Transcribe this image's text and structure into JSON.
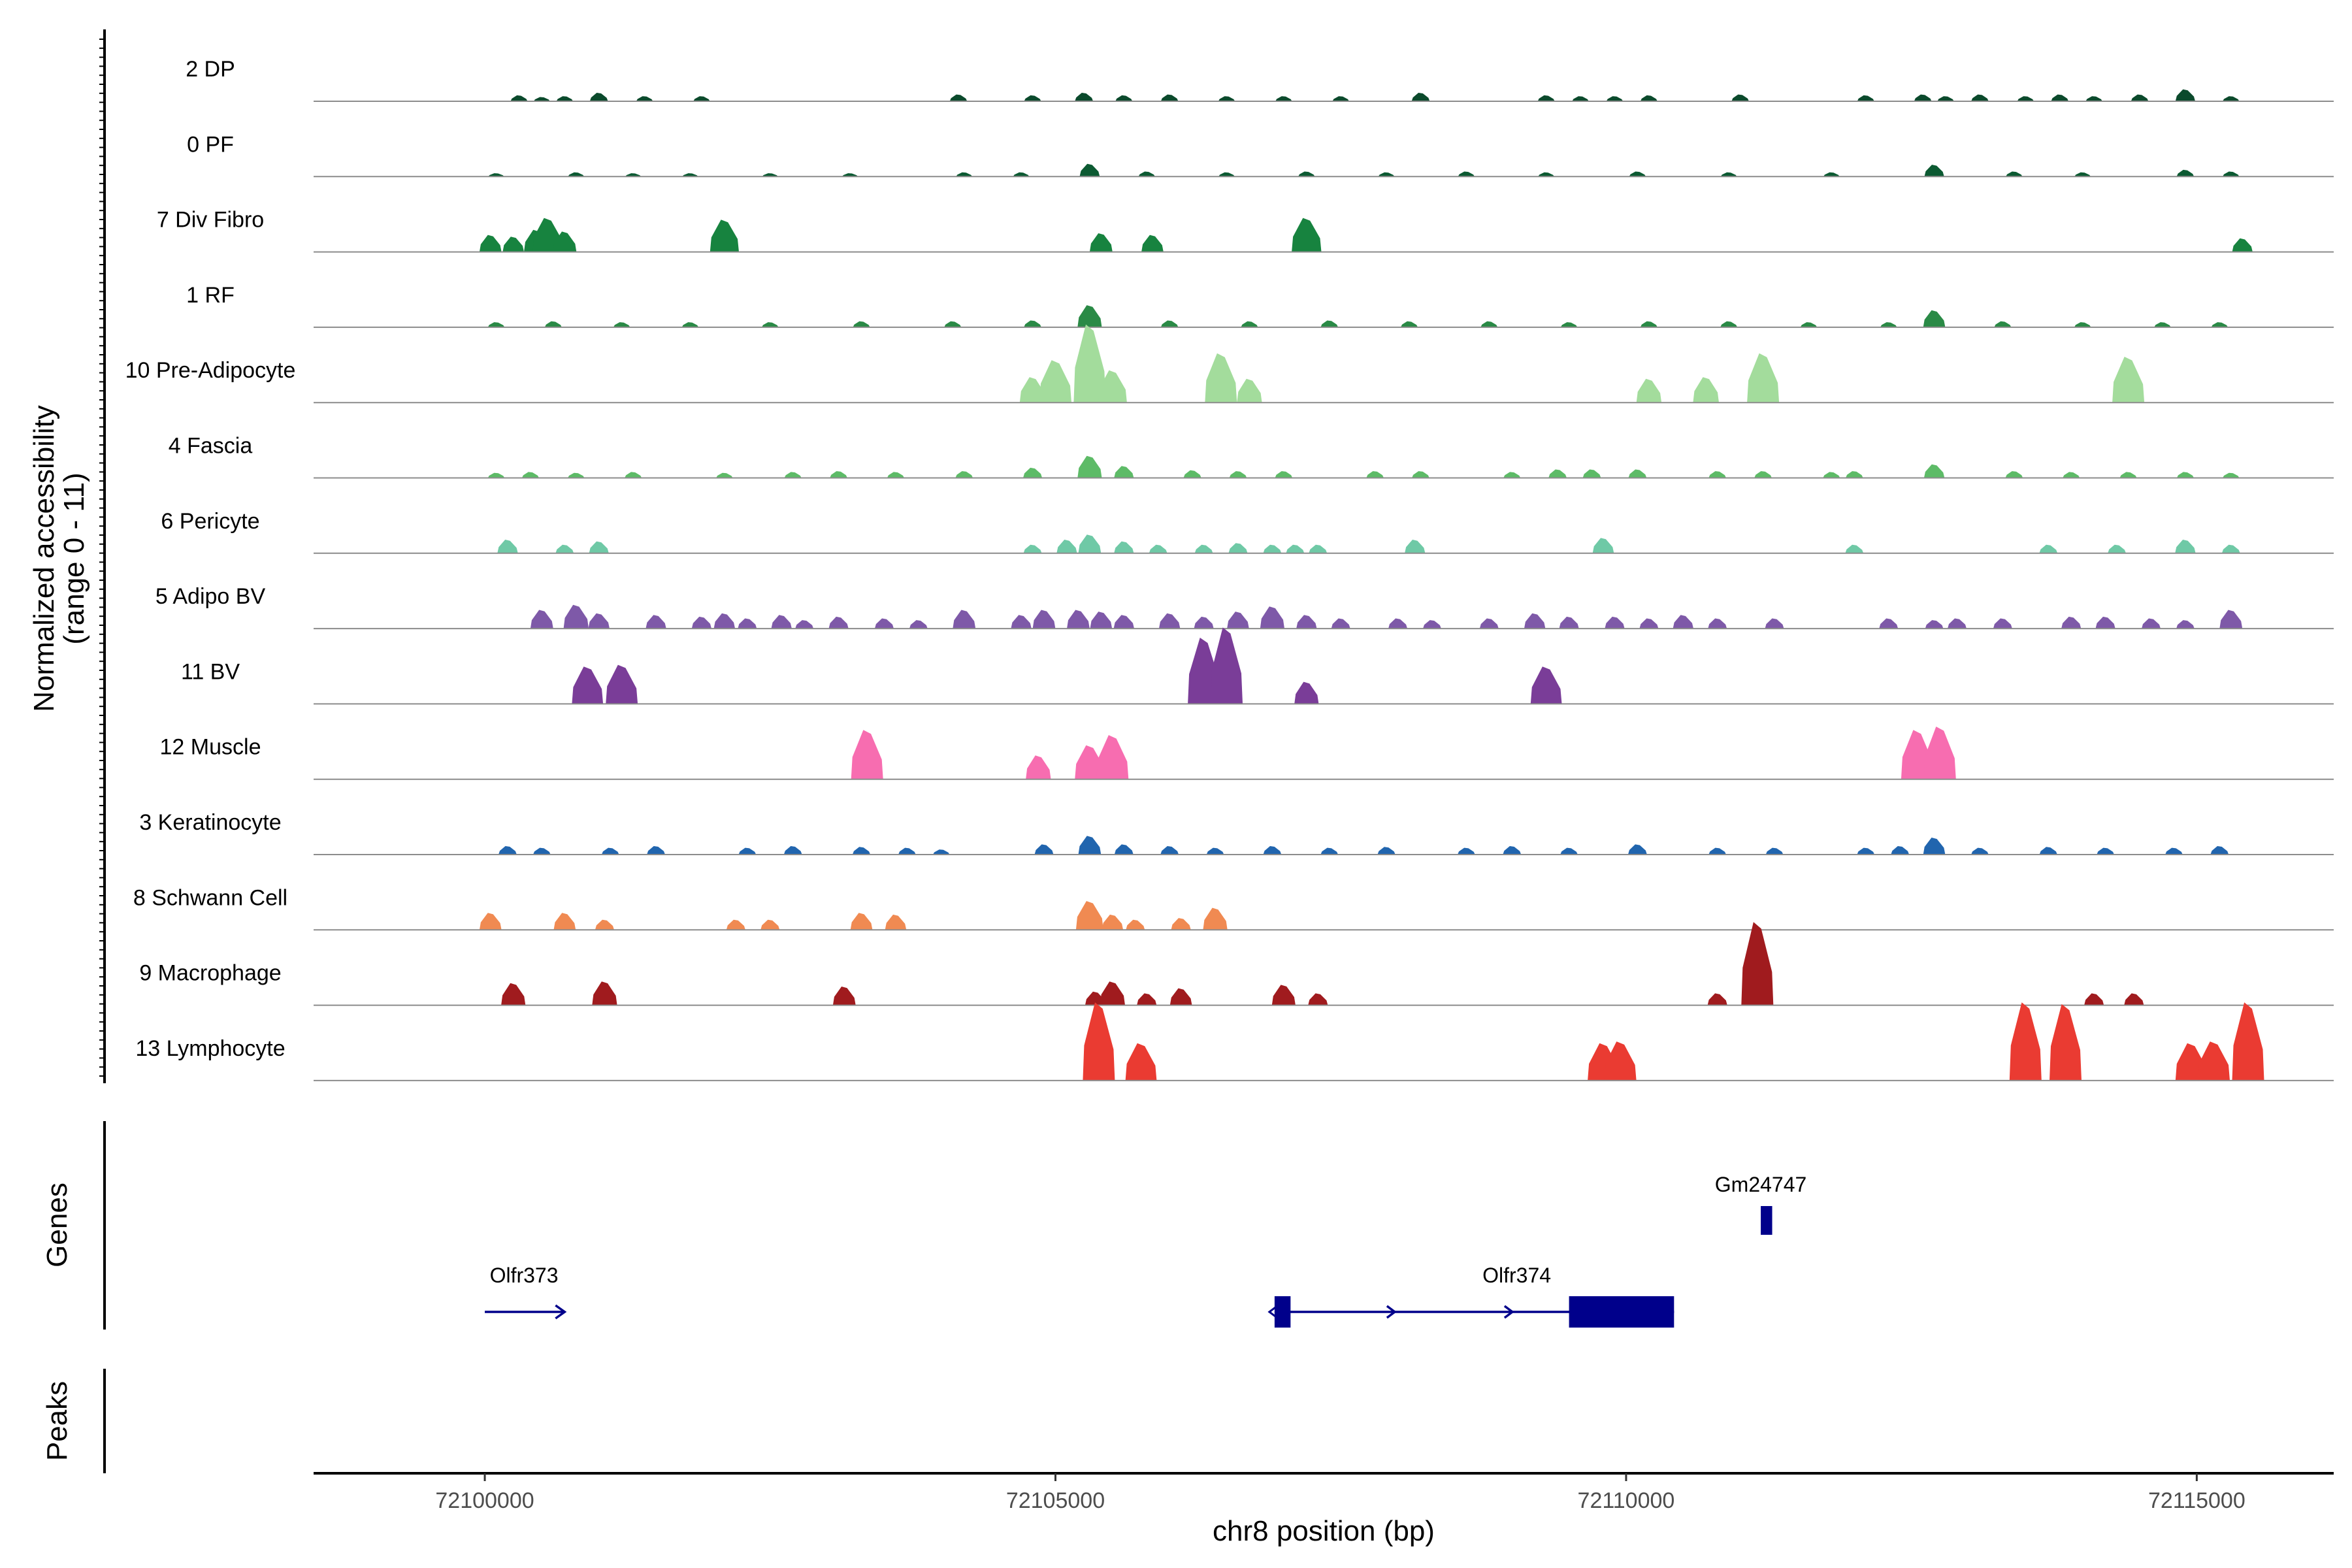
{
  "chart_data": {
    "type": "coverage-tracks",
    "chromosome": "chr8",
    "xlim": [
      72098500,
      72116200
    ],
    "xlabel": "chr8 position (bp)",
    "x_ticks": [
      72100000,
      72105000,
      72110000,
      72115000
    ],
    "x_tick_labels": [
      "72100000",
      "72105000",
      "72110000",
      "72115000"
    ],
    "coverage_ylabel_line1": "Normalized accessibility",
    "coverage_ylabel_line2": "(range 0 - 11)",
    "y_range": [
      0,
      11
    ],
    "genes_panel_label": "Genes",
    "peaks_panel_label": "Peaks",
    "tracks": [
      {
        "name": "2 DP",
        "color": "#0b4a2c",
        "peaks": [
          [
            72100300,
            0.35
          ],
          [
            72100500,
            0.25
          ],
          [
            72100700,
            0.3
          ],
          [
            72101000,
            0.5
          ],
          [
            72101400,
            0.3
          ],
          [
            72101900,
            0.3
          ],
          [
            72104150,
            0.4
          ],
          [
            72104800,
            0.35
          ],
          [
            72105250,
            0.5
          ],
          [
            72105600,
            0.35
          ],
          [
            72106000,
            0.4
          ],
          [
            72106500,
            0.3
          ],
          [
            72107000,
            0.3
          ],
          [
            72107500,
            0.3
          ],
          [
            72108200,
            0.5
          ],
          [
            72109300,
            0.35
          ],
          [
            72109600,
            0.3
          ],
          [
            72109900,
            0.3
          ],
          [
            72110200,
            0.35
          ],
          [
            72111000,
            0.4
          ],
          [
            72112100,
            0.35
          ],
          [
            72112600,
            0.4
          ],
          [
            72112800,
            0.3
          ],
          [
            72113100,
            0.4
          ],
          [
            72113500,
            0.3
          ],
          [
            72113800,
            0.4
          ],
          [
            72114100,
            0.3
          ],
          [
            72114500,
            0.4
          ],
          [
            72114900,
            0.7
          ],
          [
            72115300,
            0.3
          ]
        ]
      },
      {
        "name": "0 PF",
        "color": "#0c5a32",
        "peaks": [
          [
            72100100,
            0.2
          ],
          [
            72100800,
            0.25
          ],
          [
            72101300,
            0.2
          ],
          [
            72101800,
            0.2
          ],
          [
            72102500,
            0.2
          ],
          [
            72103200,
            0.2
          ],
          [
            72104200,
            0.25
          ],
          [
            72104700,
            0.25
          ],
          [
            72105300,
            0.75
          ],
          [
            72105800,
            0.3
          ],
          [
            72106500,
            0.25
          ],
          [
            72107200,
            0.3
          ],
          [
            72107900,
            0.25
          ],
          [
            72108600,
            0.3
          ],
          [
            72109300,
            0.25
          ],
          [
            72110100,
            0.3
          ],
          [
            72110900,
            0.25
          ],
          [
            72111800,
            0.25
          ],
          [
            72112700,
            0.7
          ],
          [
            72113400,
            0.3
          ],
          [
            72114000,
            0.25
          ],
          [
            72114900,
            0.4
          ],
          [
            72115300,
            0.3
          ]
        ]
      },
      {
        "name": "7 Div Fibro",
        "color": "#17833f",
        "peaks": [
          [
            72100050,
            1.0
          ],
          [
            72100250,
            0.9
          ],
          [
            72100450,
            1.3
          ],
          [
            72100550,
            2.0
          ],
          [
            72100700,
            1.2
          ],
          [
            72102100,
            1.9
          ],
          [
            72105400,
            1.1
          ],
          [
            72105850,
            1.0
          ],
          [
            72107200,
            2.0
          ],
          [
            72115400,
            0.8
          ]
        ]
      },
      {
        "name": "1 RF",
        "color": "#2a8a46",
        "peaks": [
          [
            72100100,
            0.3
          ],
          [
            72100600,
            0.35
          ],
          [
            72101200,
            0.3
          ],
          [
            72101800,
            0.3
          ],
          [
            72102500,
            0.3
          ],
          [
            72103300,
            0.35
          ],
          [
            72104100,
            0.35
          ],
          [
            72104800,
            0.4
          ],
          [
            72105300,
            1.3
          ],
          [
            72106000,
            0.4
          ],
          [
            72106700,
            0.35
          ],
          [
            72107400,
            0.4
          ],
          [
            72108100,
            0.35
          ],
          [
            72108800,
            0.35
          ],
          [
            72109500,
            0.3
          ],
          [
            72110200,
            0.35
          ],
          [
            72110900,
            0.35
          ],
          [
            72111600,
            0.3
          ],
          [
            72112300,
            0.3
          ],
          [
            72112700,
            1.0
          ],
          [
            72113300,
            0.35
          ],
          [
            72114000,
            0.3
          ],
          [
            72114700,
            0.3
          ],
          [
            72115200,
            0.3
          ]
        ]
      },
      {
        "name": "10 Pre-Adipocyte",
        "color": "#a3dc9c",
        "peaks": [
          [
            72104800,
            1.5
          ],
          [
            72105000,
            2.5
          ],
          [
            72105300,
            4.6
          ],
          [
            72105500,
            1.9
          ],
          [
            72106450,
            2.9
          ],
          [
            72106700,
            1.4
          ],
          [
            72110200,
            1.4
          ],
          [
            72110700,
            1.5
          ],
          [
            72111200,
            2.9
          ],
          [
            72114400,
            2.7
          ]
        ]
      },
      {
        "name": "4 Fascia",
        "color": "#5dbb67",
        "peaks": [
          [
            72100100,
            0.3
          ],
          [
            72100400,
            0.35
          ],
          [
            72100800,
            0.3
          ],
          [
            72101300,
            0.35
          ],
          [
            72102100,
            0.3
          ],
          [
            72102700,
            0.35
          ],
          [
            72103100,
            0.4
          ],
          [
            72103600,
            0.35
          ],
          [
            72104200,
            0.4
          ],
          [
            72104800,
            0.6
          ],
          [
            72105300,
            1.3
          ],
          [
            72105600,
            0.7
          ],
          [
            72106200,
            0.45
          ],
          [
            72106600,
            0.4
          ],
          [
            72107000,
            0.4
          ],
          [
            72107800,
            0.4
          ],
          [
            72108200,
            0.4
          ],
          [
            72109000,
            0.35
          ],
          [
            72109400,
            0.5
          ],
          [
            72109700,
            0.5
          ],
          [
            72110100,
            0.5
          ],
          [
            72110800,
            0.4
          ],
          [
            72111200,
            0.4
          ],
          [
            72111800,
            0.35
          ],
          [
            72112000,
            0.4
          ],
          [
            72112700,
            0.8
          ],
          [
            72113400,
            0.4
          ],
          [
            72113900,
            0.35
          ],
          [
            72114400,
            0.35
          ],
          [
            72114900,
            0.35
          ],
          [
            72115300,
            0.3
          ]
        ]
      },
      {
        "name": "6 Pericyte",
        "color": "#6fc9a6",
        "peaks": [
          [
            72100200,
            0.8
          ],
          [
            72100700,
            0.5
          ],
          [
            72101000,
            0.7
          ],
          [
            72104800,
            0.5
          ],
          [
            72105100,
            0.8
          ],
          [
            72105300,
            1.1
          ],
          [
            72105600,
            0.7
          ],
          [
            72105900,
            0.5
          ],
          [
            72106300,
            0.5
          ],
          [
            72106600,
            0.6
          ],
          [
            72106900,
            0.5
          ],
          [
            72107100,
            0.5
          ],
          [
            72107300,
            0.5
          ],
          [
            72108150,
            0.8
          ],
          [
            72109800,
            0.9
          ],
          [
            72112000,
            0.5
          ],
          [
            72113700,
            0.5
          ],
          [
            72114300,
            0.5
          ],
          [
            72114900,
            0.8
          ],
          [
            72115300,
            0.5
          ]
        ]
      },
      {
        "name": "5 Adipo BV",
        "color": "#7e59a8",
        "peaks": [
          [
            72100500,
            1.1
          ],
          [
            72100800,
            1.4
          ],
          [
            72101000,
            0.9
          ],
          [
            72101500,
            0.8
          ],
          [
            72101900,
            0.7
          ],
          [
            72102100,
            0.9
          ],
          [
            72102300,
            0.6
          ],
          [
            72102600,
            0.8
          ],
          [
            72102800,
            0.5
          ],
          [
            72103100,
            0.7
          ],
          [
            72103500,
            0.6
          ],
          [
            72103800,
            0.5
          ],
          [
            72104200,
            1.1
          ],
          [
            72104700,
            0.8
          ],
          [
            72104900,
            1.1
          ],
          [
            72105200,
            1.1
          ],
          [
            72105400,
            1.0
          ],
          [
            72105600,
            0.8
          ],
          [
            72106000,
            0.9
          ],
          [
            72106300,
            0.7
          ],
          [
            72106600,
            1.0
          ],
          [
            72106900,
            1.3
          ],
          [
            72107200,
            0.8
          ],
          [
            72107500,
            0.6
          ],
          [
            72108000,
            0.6
          ],
          [
            72108300,
            0.5
          ],
          [
            72108800,
            0.6
          ],
          [
            72109200,
            0.9
          ],
          [
            72109500,
            0.7
          ],
          [
            72109900,
            0.7
          ],
          [
            72110200,
            0.6
          ],
          [
            72110500,
            0.8
          ],
          [
            72110800,
            0.6
          ],
          [
            72111300,
            0.6
          ],
          [
            72112300,
            0.6
          ],
          [
            72112700,
            0.5
          ],
          [
            72112900,
            0.6
          ],
          [
            72113300,
            0.6
          ],
          [
            72113900,
            0.7
          ],
          [
            72114200,
            0.7
          ],
          [
            72114600,
            0.6
          ],
          [
            72114900,
            0.5
          ],
          [
            72115300,
            1.1
          ]
        ]
      },
      {
        "name": "11 BV",
        "color": "#7a3d98",
        "peaks": [
          [
            72100900,
            2.2
          ],
          [
            72101200,
            2.3
          ],
          [
            72106300,
            3.9
          ],
          [
            72106500,
            4.5
          ],
          [
            72107200,
            1.3
          ],
          [
            72109300,
            2.2
          ]
        ]
      },
      {
        "name": "12 Muscle",
        "color": "#f76db0",
        "peaks": [
          [
            72103350,
            2.9
          ],
          [
            72104850,
            1.4
          ],
          [
            72105300,
            2.0
          ],
          [
            72105500,
            2.6
          ],
          [
            72112550,
            2.9
          ],
          [
            72112750,
            3.1
          ]
        ]
      },
      {
        "name": "3 Keratinocyte",
        "color": "#2165ae",
        "peaks": [
          [
            72100200,
            0.5
          ],
          [
            72100500,
            0.4
          ],
          [
            72101100,
            0.4
          ],
          [
            72101500,
            0.5
          ],
          [
            72102300,
            0.4
          ],
          [
            72102700,
            0.5
          ],
          [
            72103300,
            0.45
          ],
          [
            72103700,
            0.4
          ],
          [
            72104000,
            0.3
          ],
          [
            72104900,
            0.6
          ],
          [
            72105300,
            1.1
          ],
          [
            72105600,
            0.6
          ],
          [
            72106000,
            0.5
          ],
          [
            72106400,
            0.4
          ],
          [
            72106900,
            0.5
          ],
          [
            72107400,
            0.4
          ],
          [
            72107900,
            0.45
          ],
          [
            72108600,
            0.4
          ],
          [
            72109000,
            0.5
          ],
          [
            72109500,
            0.4
          ],
          [
            72110100,
            0.6
          ],
          [
            72110800,
            0.4
          ],
          [
            72111300,
            0.4
          ],
          [
            72112100,
            0.4
          ],
          [
            72112400,
            0.5
          ],
          [
            72112700,
            1.0
          ],
          [
            72113100,
            0.4
          ],
          [
            72113700,
            0.45
          ],
          [
            72114200,
            0.4
          ],
          [
            72114800,
            0.4
          ],
          [
            72115200,
            0.5
          ]
        ]
      },
      {
        "name": "8 Schwann Cell",
        "color": "#f08a52",
        "peaks": [
          [
            72100050,
            1.0
          ],
          [
            72100700,
            1.0
          ],
          [
            72101050,
            0.6
          ],
          [
            72102200,
            0.6
          ],
          [
            72102500,
            0.6
          ],
          [
            72103300,
            1.0
          ],
          [
            72103600,
            0.9
          ],
          [
            72105300,
            1.7
          ],
          [
            72105500,
            0.9
          ],
          [
            72105700,
            0.6
          ],
          [
            72106100,
            0.7
          ],
          [
            72106400,
            1.3
          ]
        ]
      },
      {
        "name": "9 Macrophage",
        "color": "#a01b1e",
        "peaks": [
          [
            72100250,
            1.3
          ],
          [
            72101050,
            1.4
          ],
          [
            72103150,
            1.1
          ],
          [
            72105350,
            0.8
          ],
          [
            72105500,
            1.4
          ],
          [
            72105800,
            0.7
          ],
          [
            72106100,
            1.0
          ],
          [
            72107000,
            1.2
          ],
          [
            72107300,
            0.7
          ],
          [
            72110800,
            0.7
          ],
          [
            72111150,
            4.9
          ],
          [
            72114100,
            0.7
          ],
          [
            72114450,
            0.7
          ]
        ]
      },
      {
        "name": "13 Lymphocyte",
        "color": "#ea3b32",
        "peaks": [
          [
            72105380,
            4.6
          ],
          [
            72105750,
            2.2
          ],
          [
            72109800,
            2.2
          ],
          [
            72109950,
            2.3
          ],
          [
            72113500,
            4.6
          ],
          [
            72113850,
            4.5
          ],
          [
            72114950,
            2.2
          ],
          [
            72115150,
            2.3
          ],
          [
            72115450,
            4.6
          ]
        ]
      }
    ],
    "genes": [
      {
        "name": "Olfr373",
        "label": "Olfr373",
        "start": 72100000,
        "end": 72100700,
        "strand": "+",
        "exons": []
      },
      {
        "name": "Olfr374",
        "label": "Olfr374",
        "start": 72106920,
        "end": 72110420,
        "strand": "+",
        "exons": [
          [
            72106920,
            72107060
          ],
          [
            72109500,
            72110420
          ]
        ]
      },
      {
        "name": "Gm24747",
        "label": "Gm24747",
        "start": 72111180,
        "end": 72111280,
        "strand": "+",
        "exons": [
          [
            72111180,
            72111280
          ]
        ]
      }
    ],
    "peaks_track": []
  },
  "colors": {
    "baseline": "#8c8c8c",
    "axis": "#000000",
    "gene": "#00008b",
    "tick_text": "#4d4d4d"
  }
}
